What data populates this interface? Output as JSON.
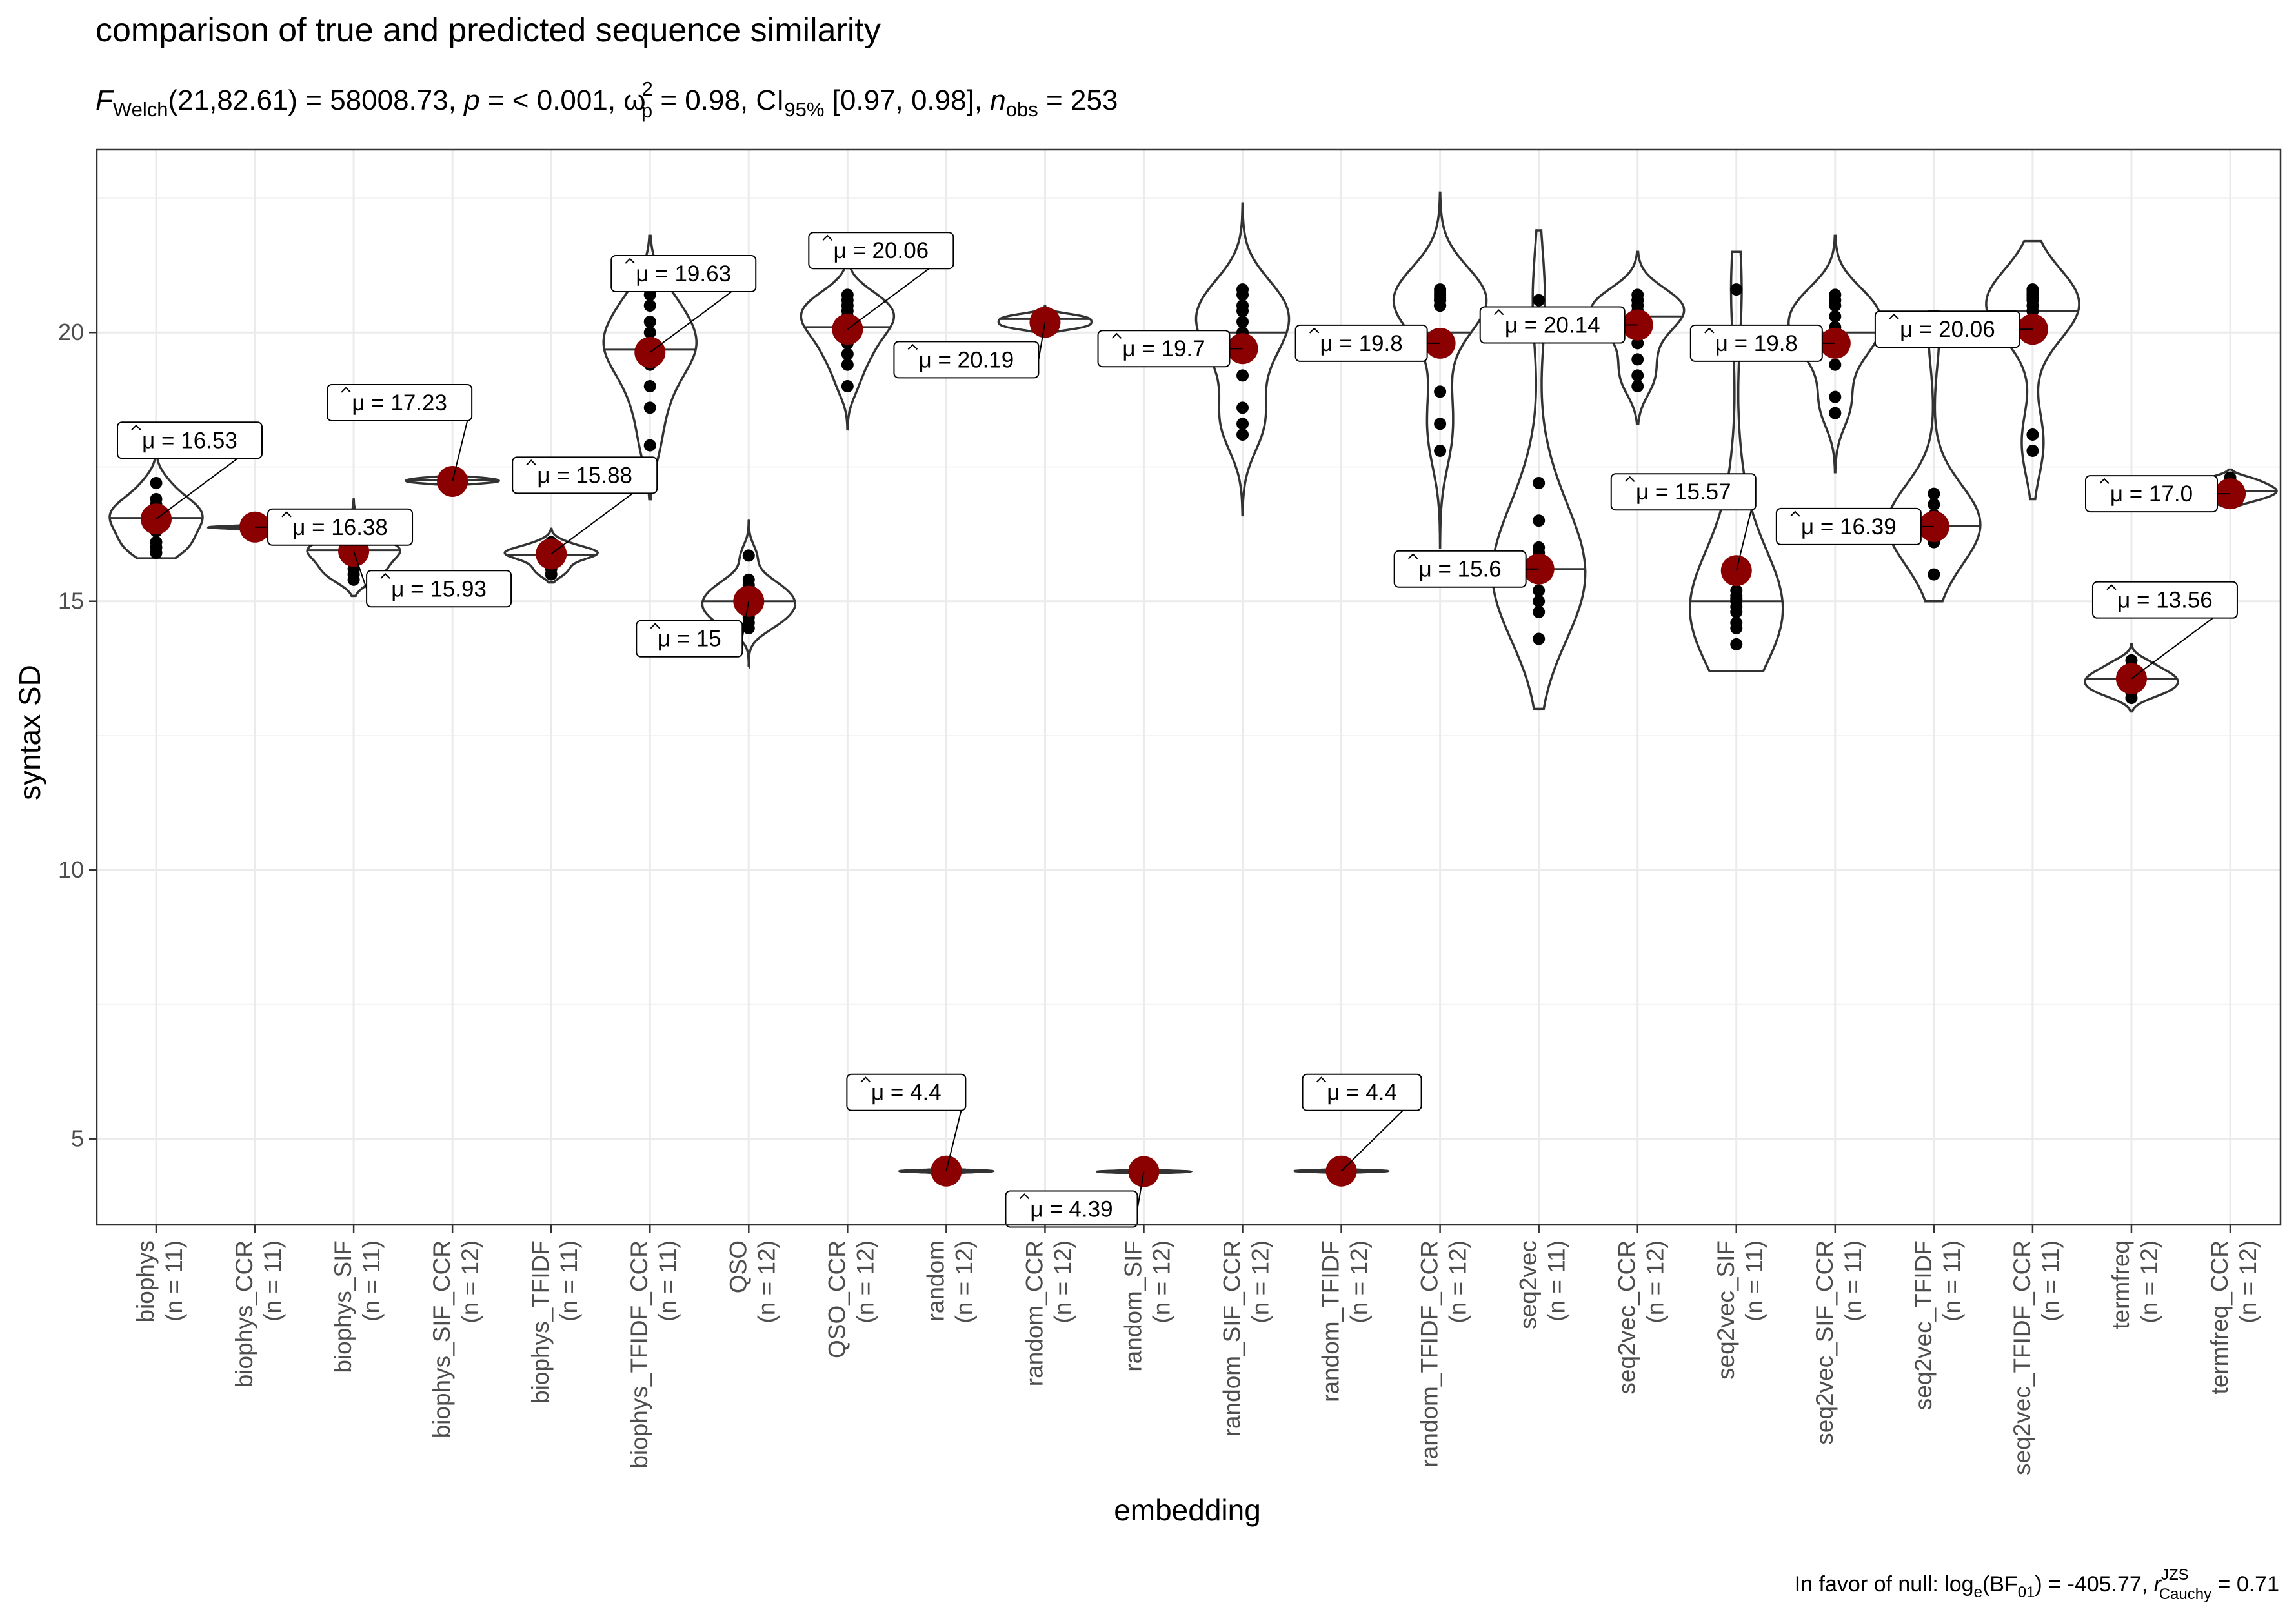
{
  "chart_data": {
    "type": "violin",
    "title": "comparison of true and predicted sequence similarity",
    "subtitle": {
      "F_symbol": "F",
      "F_sub": "Welch",
      "F_args": "(21,82.61) = 58008.73, ",
      "p_symbol": "p",
      "p_text": " = < 0.001, ",
      "omega_symbol": "ω",
      "omega_sup": "2",
      "omega_sub": "p",
      "omega_text": " = 0.98, CI",
      "ci_sub": "95%",
      "ci_text": " [0.97, 0.98], ",
      "n_symbol": "n",
      "n_sub": "obs",
      "n_text": " = 253"
    },
    "xlabel": "embedding",
    "ylabel": "syntax SD",
    "ylim": [
      3.4,
      23.4
    ],
    "yticks": [
      5,
      10,
      15,
      20
    ],
    "grid": true,
    "mean_prefix": "μ = ",
    "caption": {
      "prefix": "In favor of null: log",
      "e_sub": "e",
      "bf_text": "(BF",
      "bf_sub": "01",
      "bf_close": ") = -405.77, ",
      "r_symbol": "r",
      "r_sup": "JZS",
      "r_sub": "Cauchy",
      "r_text": " = 0.71"
    },
    "groups": [
      {
        "name": "biophys",
        "n_label": "(n = 11)",
        "mean": 16.53,
        "mean_label": "16.53",
        "median": 16.55,
        "min": 15.8,
        "max": 18.0,
        "points": [
          17.2,
          16.8,
          16.7,
          16.6,
          16.4,
          16.3,
          16.1,
          16.0,
          15.9,
          16.5,
          16.9
        ]
      },
      {
        "name": "biophys_CCR",
        "n_label": "(n = 11)",
        "mean": 16.38,
        "mean_label": "16.38",
        "median": 16.36,
        "min": 16.3,
        "max": 16.45,
        "points": [
          16.38,
          16.36,
          16.4,
          16.35,
          16.37,
          16.39,
          16.36,
          16.38,
          16.4,
          16.37,
          16.38
        ]
      },
      {
        "name": "biophys_SIF",
        "n_label": "(n = 11)",
        "mean": 15.93,
        "mean_label": "15.93",
        "median": 15.95,
        "min": 15.1,
        "max": 16.9,
        "points": [
          16.4,
          16.1,
          16.0,
          15.9,
          15.8,
          15.7,
          15.6,
          15.5,
          15.4,
          15.95,
          16.05
        ]
      },
      {
        "name": "biophys_SIF_CCR",
        "n_label": "(n = 12)",
        "mean": 17.23,
        "mean_label": "17.23",
        "median": 17.25,
        "min": 17.05,
        "max": 17.5,
        "points": [
          17.3,
          17.2,
          17.25,
          17.28,
          17.22,
          17.24,
          17.26,
          17.21,
          17.27,
          17.19,
          17.3,
          17.23
        ]
      },
      {
        "name": "biophys_TFIDF",
        "n_label": "(n = 11)",
        "mean": 15.88,
        "mean_label": "15.88",
        "median": 15.86,
        "min": 15.35,
        "max": 16.35,
        "points": [
          16.1,
          16.0,
          15.95,
          15.9,
          15.85,
          15.8,
          15.7,
          15.6,
          15.5,
          15.92,
          15.88
        ]
      },
      {
        "name": "biophys_TFIDF_CCR",
        "n_label": "(n = 11)",
        "mean": 19.63,
        "mean_label": "19.63",
        "median": 19.68,
        "min": 16.9,
        "max": 21.8,
        "points": [
          20.7,
          20.5,
          20.2,
          19.8,
          19.6,
          19.4,
          19.0,
          18.6,
          17.9,
          20.0,
          19.7
        ]
      },
      {
        "name": "QSO",
        "n_label": "(n = 12)",
        "mean": 15.0,
        "mean_label": "15",
        "median": 15.0,
        "min": 13.8,
        "max": 16.5,
        "points": [
          15.85,
          15.4,
          15.2,
          15.1,
          15.0,
          14.9,
          14.8,
          14.7,
          14.6,
          14.5,
          15.3,
          14.95
        ]
      },
      {
        "name": "QSO_CCR",
        "n_label": "(n = 12)",
        "mean": 20.06,
        "mean_label": "20.06",
        "median": 20.1,
        "min": 18.2,
        "max": 21.6,
        "points": [
          20.7,
          20.6,
          20.5,
          20.4,
          20.2,
          20.1,
          20.0,
          19.8,
          19.6,
          19.4,
          19.0,
          20.3
        ]
      },
      {
        "name": "random",
        "n_label": "(n = 12)",
        "mean": 4.4,
        "mean_label": "4.4",
        "median": 4.4,
        "min": 4.34,
        "max": 4.46,
        "points": [
          4.4,
          4.41,
          4.39,
          4.42,
          4.38,
          4.4,
          4.41,
          4.39,
          4.4,
          4.42,
          4.38,
          4.4
        ]
      },
      {
        "name": "random_CCR",
        "n_label": "(n = 12)",
        "mean": 20.19,
        "mean_label": "20.19",
        "median": 20.25,
        "min": 19.95,
        "max": 20.5,
        "points": [
          20.35,
          20.3,
          20.25,
          20.2,
          20.15,
          20.1,
          20.05,
          20.3,
          20.2,
          20.15,
          20.25,
          20.1
        ]
      },
      {
        "name": "random_SIF",
        "n_label": "(n = 12)",
        "mean": 4.39,
        "mean_label": "4.39",
        "median": 4.39,
        "min": 4.34,
        "max": 4.44,
        "points": [
          4.39,
          4.4,
          4.38,
          4.39,
          4.41,
          4.37,
          4.39,
          4.4,
          4.38,
          4.39,
          4.4,
          4.38
        ]
      },
      {
        "name": "random_SIF_CCR",
        "n_label": "(n = 12)",
        "mean": 19.7,
        "mean_label": "19.7",
        "median": 20.0,
        "min": 16.6,
        "max": 22.4,
        "points": [
          20.8,
          20.7,
          20.4,
          20.2,
          19.9,
          19.6,
          19.2,
          18.6,
          18.3,
          18.1,
          20.0,
          20.5
        ]
      },
      {
        "name": "random_TFIDF",
        "n_label": "(n = 12)",
        "mean": 4.4,
        "mean_label": "4.4",
        "median": 4.4,
        "min": 4.35,
        "max": 4.45,
        "points": [
          4.4,
          4.41,
          4.39,
          4.4,
          4.42,
          4.38,
          4.4,
          4.41,
          4.39,
          4.4,
          4.4,
          4.41
        ]
      },
      {
        "name": "random_TFIDF_CCR",
        "n_label": "(n = 12)",
        "mean": 19.8,
        "mean_label": "19.8",
        "median": 20.0,
        "min": 16.0,
        "max": 22.6,
        "points": [
          20.8,
          20.7,
          20.6,
          20.5,
          19.8,
          18.9,
          18.3,
          17.8,
          20.6,
          20.75,
          20.5,
          20.65
        ]
      },
      {
        "name": "seq2vec",
        "n_label": "(n = 11)",
        "mean": 15.6,
        "mean_label": "15.6",
        "median": 15.6,
        "min": 13.0,
        "max": 21.9,
        "points": [
          20.6,
          17.2,
          16.5,
          15.9,
          15.5,
          15.2,
          15.0,
          14.8,
          14.3,
          15.7,
          16.0
        ]
      },
      {
        "name": "seq2vec_CCR",
        "n_label": "(n = 12)",
        "mean": 20.14,
        "mean_label": "20.14",
        "median": 20.3,
        "min": 18.3,
        "max": 21.5,
        "points": [
          20.7,
          20.6,
          20.5,
          20.4,
          20.3,
          20.1,
          19.8,
          19.5,
          19.2,
          19.0,
          20.2,
          20.6
        ]
      },
      {
        "name": "seq2vec_SIF",
        "n_label": "(n = 11)",
        "mean": 15.57,
        "mean_label": "15.57",
        "median": 15.0,
        "min": 13.7,
        "max": 21.5,
        "points": [
          20.8,
          16.9,
          15.2,
          15.1,
          15.0,
          14.9,
          14.8,
          14.6,
          14.5,
          14.2,
          15.05
        ]
      },
      {
        "name": "seq2vec_SIF_CCR",
        "n_label": "(n = 11)",
        "mean": 19.8,
        "mean_label": "19.8",
        "median": 20.0,
        "min": 17.4,
        "max": 21.8,
        "points": [
          20.7,
          20.5,
          20.3,
          20.1,
          19.9,
          19.7,
          19.4,
          18.8,
          18.5,
          20.6,
          20.0
        ]
      },
      {
        "name": "seq2vec_TFIDF",
        "n_label": "(n = 11)",
        "mean": 16.39,
        "mean_label": "16.39",
        "median": 16.4,
        "min": 15.0,
        "max": 20.4,
        "points": [
          20.0,
          17.0,
          16.8,
          16.6,
          16.5,
          16.4,
          16.3,
          16.2,
          16.1,
          15.5,
          16.45
        ]
      },
      {
        "name": "seq2vec_TFIDF_CCR",
        "n_label": "(n = 11)",
        "mean": 20.06,
        "mean_label": "20.06",
        "median": 20.4,
        "min": 16.9,
        "max": 21.7,
        "points": [
          20.8,
          20.7,
          20.6,
          20.5,
          20.4,
          20.2,
          20.0,
          18.1,
          17.8,
          20.75,
          20.65
        ]
      },
      {
        "name": "termfreq",
        "n_label": "(n = 12)",
        "mean": 13.56,
        "mean_label": "13.56",
        "median": 13.55,
        "min": 12.95,
        "max": 14.2,
        "points": [
          13.9,
          13.8,
          13.7,
          13.65,
          13.6,
          13.55,
          13.5,
          13.45,
          13.4,
          13.35,
          13.3,
          13.2
        ]
      },
      {
        "name": "termfreq_CCR",
        "n_label": "(n = 12)",
        "mean": 17.0,
        "mean_label": "17.0",
        "median": 17.05,
        "min": 16.75,
        "max": 17.45,
        "points": [
          17.3,
          17.2,
          17.15,
          17.1,
          17.05,
          17.0,
          16.95,
          16.9,
          16.85,
          17.25,
          17.1,
          17.0
        ]
      }
    ],
    "mean_label_positions": [
      {
        "pos": "upper-right"
      },
      {
        "pos": "right"
      },
      {
        "pos": "lower-right"
      },
      {
        "pos": "upper-left"
      },
      {
        "pos": "upper-right"
      },
      {
        "pos": "upper-right"
      },
      {
        "pos": "lower-left"
      },
      {
        "pos": "upper-right"
      },
      {
        "pos": "upper-left"
      },
      {
        "pos": "lower-left"
      },
      {
        "pos": "lower-left"
      },
      {
        "pos": "left"
      },
      {
        "pos": "upper-right"
      },
      {
        "pos": "left"
      },
      {
        "pos": "left"
      },
      {
        "pos": "left"
      },
      {
        "pos": "upper-left"
      },
      {
        "pos": "left"
      },
      {
        "pos": "left"
      },
      {
        "pos": "left"
      },
      {
        "pos": "upper-right"
      },
      {
        "pos": "left"
      }
    ],
    "colors": {
      "mean_dot": "#8B0000",
      "point": "#000000",
      "violin": "#333333",
      "grid_major": "#ebebeb",
      "grid_minor": "#f4f4f4",
      "panel_border": "#333333"
    }
  }
}
